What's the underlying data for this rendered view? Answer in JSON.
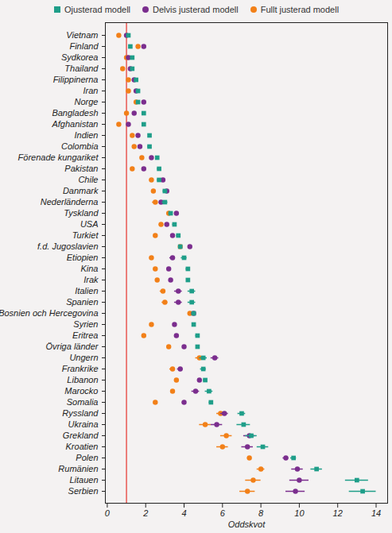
{
  "chart_data": {
    "type": "scatter",
    "orientation": "horizontal",
    "x_label": "Oddskvot",
    "xlim": [
      -0.1,
      14.6
    ],
    "xticks": [
      0,
      2,
      4,
      6,
      8,
      10,
      12,
      14
    ],
    "grid": false,
    "legend": "top",
    "reference_line": {
      "value": 1,
      "color": "#e8403a"
    },
    "categories": [
      "Vietnam",
      "Finland",
      "Sydkorea",
      "Thailand",
      "Filippinerna",
      "Iran",
      "Norge",
      "Bangladesh",
      "Afghanistan",
      "Indien",
      "Colombia",
      "Förenade kungariket",
      "Pakistan",
      "Chile",
      "Danmark",
      "Nederländerna",
      "Tyskland",
      "USA",
      "Turkiet",
      "f.d. Jugoslavien",
      "Etiopien",
      "Kina",
      "Irak",
      "Italien",
      "Spanien",
      "Bosnien och Hercegovina",
      "Syrien",
      "Eritrea",
      "Övriga länder",
      "Ungern",
      "Frankrike",
      "Libanon",
      "Marocko",
      "Somalia",
      "Ryssland",
      "Ukraina",
      "Grekland",
      "Kroatien",
      "Polen",
      "Rumänien",
      "Litauen",
      "Serbien"
    ],
    "series": [
      {
        "name": "Ojusterad modell",
        "color": "#1f9e89",
        "marker": "square",
        "values": [
          1.1,
          1.2,
          1.3,
          1.3,
          1.5,
          1.6,
          1.6,
          1.9,
          1.9,
          2.2,
          2.2,
          2.6,
          2.7,
          2.7,
          3.0,
          3.0,
          3.3,
          3.5,
          3.7,
          3.8,
          4.0,
          4.2,
          4.2,
          4.4,
          4.4,
          4.5,
          4.5,
          4.7,
          4.7,
          5.0,
          5.0,
          5.1,
          5.3,
          5.4,
          7.0,
          7.1,
          7.5,
          8.1,
          9.7,
          10.9,
          13.0,
          13.3
        ],
        "errors": [
          0.05,
          0.05,
          0.05,
          0.05,
          0.05,
          0.05,
          0.05,
          0.1,
          0.05,
          0.05,
          0.1,
          0.05,
          0.1,
          0.1,
          0.1,
          0.15,
          0.1,
          0.1,
          0.1,
          0.05,
          0.15,
          0.1,
          0.05,
          0.2,
          0.2,
          0.1,
          0.05,
          0.1,
          0.05,
          0.2,
          0.15,
          0.1,
          0.2,
          0.1,
          0.2,
          0.35,
          0.3,
          0.3,
          0.15,
          0.3,
          0.6,
          0.7
        ]
      },
      {
        "name": "Delvis justerad modell",
        "color": "#7b2e8e",
        "marker": "circle",
        "values": [
          1.0,
          1.9,
          1.1,
          1.2,
          1.4,
          1.5,
          1.9,
          1.4,
          1.1,
          1.6,
          1.7,
          2.3,
          1.9,
          2.9,
          3.1,
          2.8,
          3.6,
          3.1,
          3.4,
          4.3,
          3.4,
          3.2,
          3.3,
          3.7,
          3.7,
          4.5,
          3.5,
          3.6,
          4.0,
          5.6,
          3.8,
          4.8,
          4.6,
          4.0,
          6.1,
          5.7,
          7.4,
          7.3,
          9.3,
          9.9,
          10.0,
          9.8
        ],
        "errors": [
          0.05,
          0.05,
          0.05,
          0.05,
          0.05,
          0.05,
          0.05,
          0.05,
          0.05,
          0.05,
          0.05,
          0.05,
          0.05,
          0.1,
          0.1,
          0.1,
          0.1,
          0.1,
          0.1,
          0.05,
          0.15,
          0.1,
          0.05,
          0.2,
          0.2,
          0.1,
          0.05,
          0.1,
          0.05,
          0.2,
          0.15,
          0.1,
          0.2,
          0.1,
          0.2,
          0.3,
          0.3,
          0.3,
          0.15,
          0.3,
          0.5,
          0.5
        ]
      },
      {
        "name": "Fullt justerad modell",
        "color": "#f28018",
        "marker": "circle",
        "values": [
          0.6,
          1.6,
          1.0,
          0.8,
          1.1,
          1.1,
          1.5,
          1.0,
          0.6,
          1.3,
          1.4,
          1.8,
          1.3,
          2.3,
          2.4,
          2.5,
          3.2,
          2.8,
          2.5,
          3.8,
          2.3,
          2.5,
          2.6,
          2.9,
          3.0,
          4.3,
          2.3,
          1.9,
          3.2,
          4.8,
          3.4,
          3.6,
          3.4,
          2.5,
          5.9,
          5.1,
          6.2,
          6.0,
          7.4,
          8.0,
          7.6,
          7.3
        ],
        "errors": [
          0.05,
          0.05,
          0.05,
          0.05,
          0.05,
          0.05,
          0.05,
          0.05,
          0.05,
          0.05,
          0.05,
          0.05,
          0.05,
          0.1,
          0.1,
          0.15,
          0.1,
          0.1,
          0.05,
          0.05,
          0.1,
          0.05,
          0.05,
          0.15,
          0.15,
          0.1,
          0.05,
          0.05,
          0.05,
          0.2,
          0.15,
          0.1,
          0.1,
          0.05,
          0.2,
          0.3,
          0.3,
          0.3,
          0.1,
          0.2,
          0.4,
          0.4
        ]
      }
    ]
  }
}
